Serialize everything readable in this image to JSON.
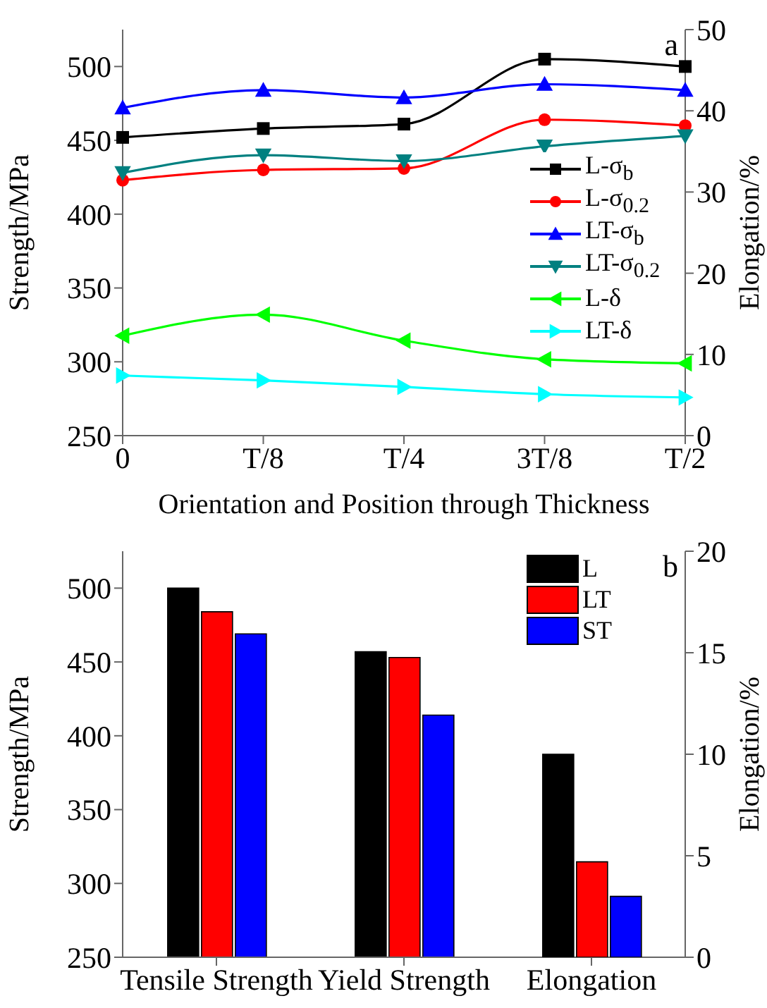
{
  "chart_data": [
    {
      "type": "line",
      "categories": [
        "0",
        "T/8",
        "T/4",
        "3T/8",
        "T/2"
      ],
      "xlabel": "Orientation and Position through Thickness",
      "ylabel": "Strength/MPa",
      "y2label": "Elongation/%",
      "series": [
        {
          "name": "L-σ$_{b}$",
          "color": "#000000",
          "marker": "square",
          "values": [
            452,
            458,
            461,
            505,
            500
          ]
        },
        {
          "name": "L-σ$_{0.2}$",
          "color": "#ff0000",
          "marker": "circle",
          "values": [
            423,
            430,
            431,
            464,
            460
          ]
        },
        {
          "name": "LT-σ$_{b}$",
          "color": "#0000ff",
          "marker": "triangle",
          "values": [
            472,
            484,
            479,
            488,
            484
          ]
        },
        {
          "name": "LT-σ$_{0.2}$",
          "color": "#008080",
          "marker": "triangle",
          "values": [
            428,
            440,
            436,
            446,
            453
          ]
        },
        {
          "name": "L-δ",
          "color": "#00ff00",
          "marker": "triangle",
          "axis": "y2",
          "values": [
            12.3,
            14.9,
            11.7,
            9.4,
            8.9
          ]
        },
        {
          "name": "LT-δ",
          "color": "#00ffff",
          "marker": "triangle",
          "axis": "y2",
          "values": [
            7.4,
            6.8,
            6.0,
            5.1,
            4.7
          ]
        }
      ],
      "ylim": [
        250,
        525
      ],
      "yticks": [
        250,
        300,
        350,
        400,
        450,
        500
      ],
      "y2lim": [
        0,
        50
      ],
      "y2ticks": [
        0,
        10,
        20,
        30,
        40,
        50
      ],
      "legend": "right",
      "annotations": [
        "a"
      ]
    },
    {
      "type": "bar",
      "categories": [
        "Tensile Strength",
        "Yield Strength",
        "Elongation"
      ],
      "ylabel": "Strength/MPa",
      "y2label": "Elongation/%",
      "series": [
        {
          "name": "L",
          "color": "#000000",
          "values": [
            500,
            457,
            null
          ]
        },
        {
          "name": "LT",
          "color": "#ff0000",
          "values": [
            484,
            453,
            null
          ]
        },
        {
          "name": "ST",
          "color": "#0000ff",
          "values": [
            469,
            414,
            null
          ]
        },
        {
          "color": "#000000",
          "axis": "y2",
          "values": [
            null,
            null,
            10.0
          ]
        },
        {
          "color": "#ff0000",
          "axis": "y2",
          "values": [
            null,
            null,
            4.7
          ]
        },
        {
          "color": "#0000ff",
          "axis": "y2",
          "values": [
            null,
            null,
            3.0
          ]
        }
      ],
      "ylim": [
        250,
        525
      ],
      "yticks": [
        250,
        300,
        350,
        400,
        450,
        500
      ],
      "y2lim": [
        0,
        20
      ],
      "y2ticks": [
        0,
        5,
        10,
        15,
        20
      ],
      "legend": "top right",
      "annotations": [
        "b"
      ]
    }
  ]
}
